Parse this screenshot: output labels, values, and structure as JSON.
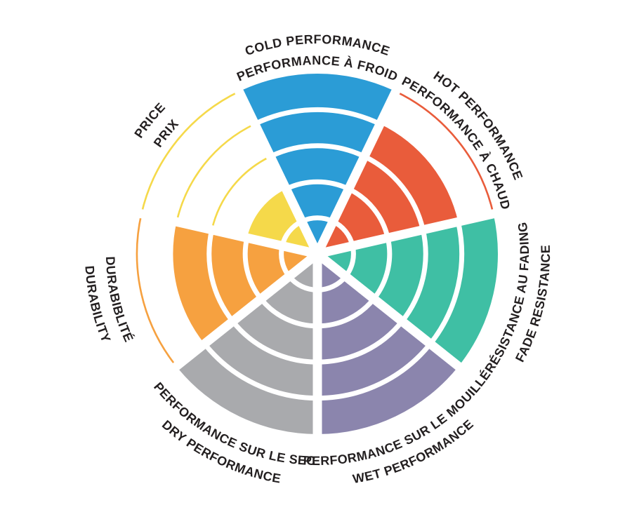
{
  "page": {
    "background": "#FFFFFF"
  },
  "chart_data": {
    "type": "bar",
    "layout": "polar-wheel: 7 equal sectors clockwise from top, 5 concentric rating rings, each sector filled from center up to its value; white ring dividers inside fills; thin colored arcs at unfilled ring boundaries; white spoke gaps between sectors; curved bilingual labels outside rim (English line outer, French line inner)",
    "title": "",
    "max_value": 5,
    "ring_count": 5,
    "grid": "white concentric dividers within filled sectors",
    "legend_position": "none",
    "label_text_color": "#231F20",
    "gap_color": "#FFFFFF",
    "categories": [
      "COLD PERFORMANCE",
      "HOT PERFORMANCE",
      "FADE RESISTANCE",
      "WET PERFORMANCE",
      "DRY PERFORMANCE",
      "DURABILITY",
      "PRICE"
    ],
    "values": [
      5,
      4,
      5,
      5,
      5,
      4,
      2
    ],
    "segments": [
      {
        "id": "cold-performance",
        "label_en": "COLD PERFORMANCE",
        "label_fr": "PERFORMANCE À FROID",
        "value": 5,
        "color": "#2B9CD6"
      },
      {
        "id": "hot-performance",
        "label_en": "HOT PERFORMANCE",
        "label_fr": "PERFORMANCE À CHAUD",
        "value": 4,
        "color": "#E95C3B"
      },
      {
        "id": "fade-resistance",
        "label_en": "FADE RESISTANCE",
        "label_fr": "RÉSISTANCE AU FADING",
        "value": 5,
        "color": "#3FBFA4"
      },
      {
        "id": "wet-performance",
        "label_en": "WET PERFORMANCE",
        "label_fr": "PERFORMANCE SUR LE MOUILLÉ",
        "value": 5,
        "color": "#8B85AD"
      },
      {
        "id": "dry-performance",
        "label_en": "DRY PERFORMANCE",
        "label_fr": "PERFORMANCE SUR LE SEC",
        "value": 5,
        "color": "#A9AAAD"
      },
      {
        "id": "durability",
        "label_en": "DURABILITY",
        "label_fr": "DURABIBLITÉ",
        "value": 4,
        "color": "#F6A140"
      },
      {
        "id": "price",
        "label_en": "PRICE",
        "label_fr": "PRIX",
        "value": 2,
        "color": "#F5D94A"
      }
    ]
  }
}
